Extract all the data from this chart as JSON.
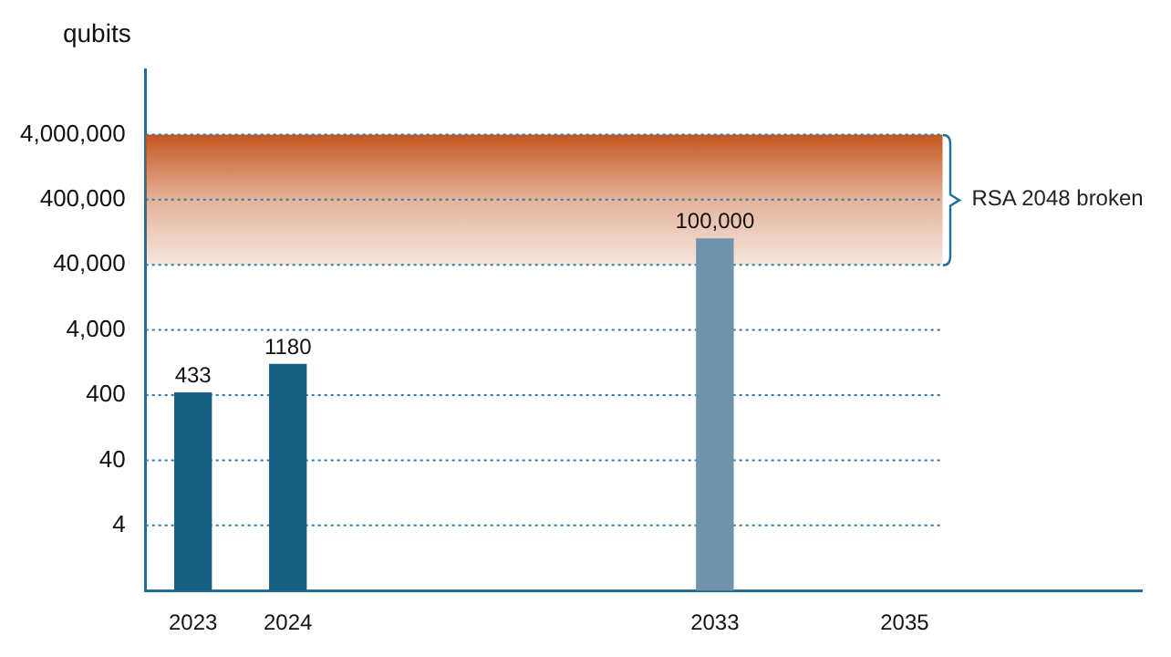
{
  "chart_data": {
    "type": "bar",
    "ylabel": "qubits",
    "categories": [
      null,
      "2023",
      null,
      "2024",
      null,
      null,
      null,
      null,
      null,
      null,
      null,
      null,
      "2033",
      null,
      null,
      null,
      "2035",
      null,
      null,
      null,
      null,
      null
    ],
    "values": [
      null,
      433,
      null,
      1180,
      null,
      null,
      null,
      null,
      null,
      null,
      null,
      null,
      100000,
      null,
      null,
      null,
      null,
      null,
      null,
      null,
      null,
      null
    ],
    "value_labels": [
      null,
      "433",
      null,
      "1180",
      null,
      null,
      null,
      null,
      null,
      null,
      null,
      null,
      "100,000",
      null,
      null,
      null,
      null,
      null,
      null,
      null,
      null,
      null
    ],
    "colors": [
      "#165e82",
      "#165e82",
      "#165e82",
      "#165e82",
      "#165e82",
      "#165e82",
      "#165e82",
      "#165e82",
      "#165e82",
      "#165e82",
      "#165e82",
      "#165e82",
      "#6f93aa",
      "#165e82",
      "#165e82",
      "#165e82",
      "#165e82",
      "#165e82",
      "#165e82",
      "#165e82",
      "#165e82",
      "#165e82"
    ],
    "log": true,
    "ylim": [
      0.4,
      40000000
    ],
    "yticks": [
      4,
      40,
      400,
      {
        "value": 4000,
        "label": "4,000"
      },
      {
        "value": 40000,
        "label": "40,000"
      },
      {
        "value": 400000,
        "label": "400,000"
      },
      {
        "value": 4000000,
        "label": "4,000,000"
      }
    ],
    "grid": "y",
    "legend": false,
    "bands": [
      {
        "axis": "y",
        "from": 40000,
        "to": 4000000,
        "label": "RSA 2048 broken",
        "color": "#c4561f"
      }
    ]
  }
}
